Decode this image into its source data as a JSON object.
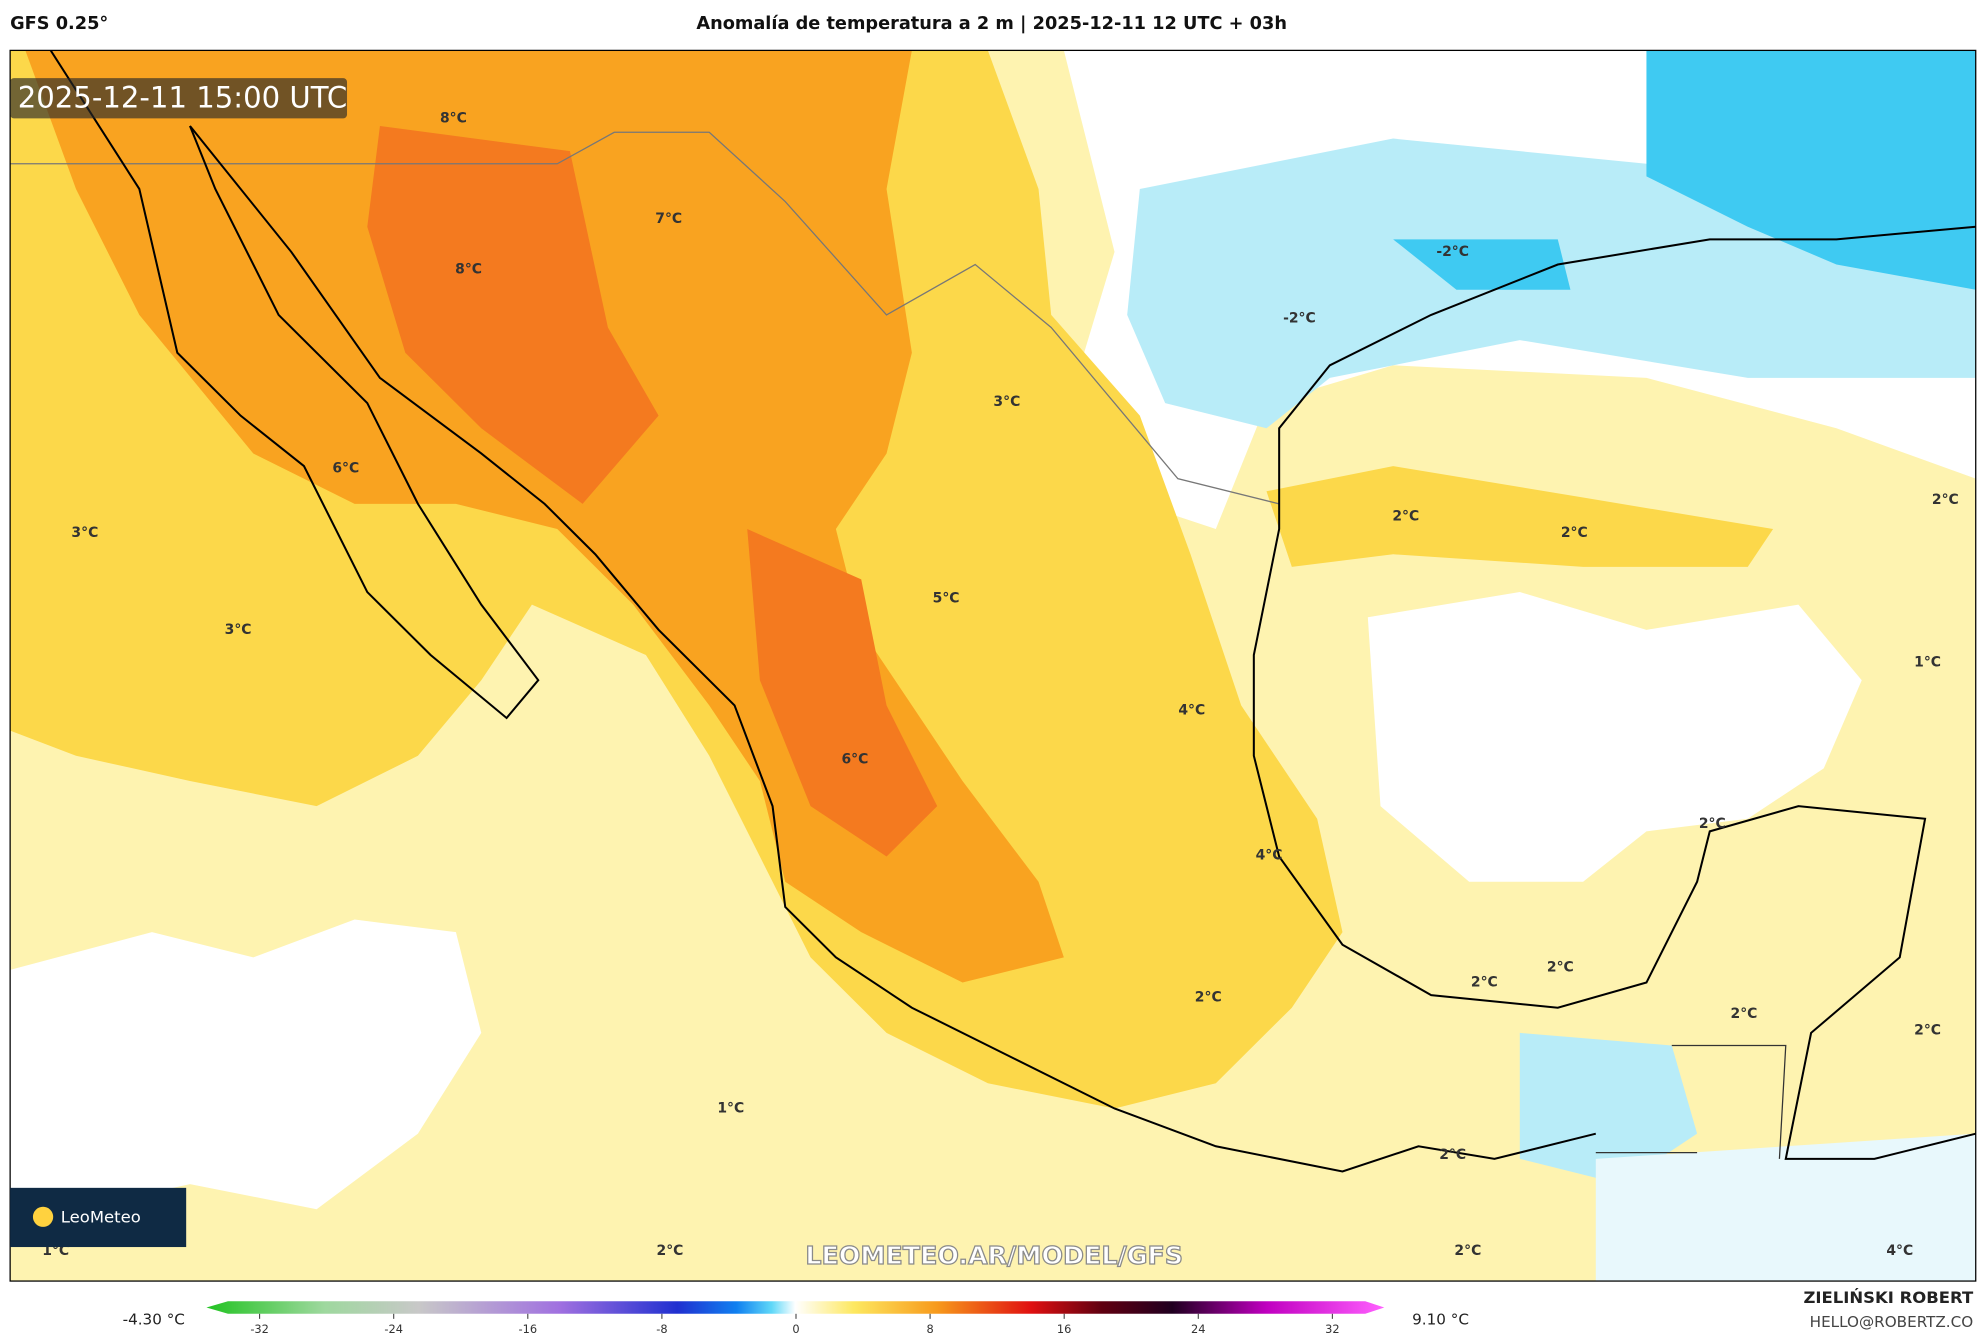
{
  "header": {
    "model": "GFS 0.25°",
    "title": "Anomalía de temperatura a 2 m | 2025-12-11 12 UTC + 03h"
  },
  "map": {
    "valid_time": "2025-12-11 15:00 UTC",
    "contour_labels": [
      "8°C",
      "7°C",
      "8°C",
      "-2°C",
      "-2°C",
      "3°C",
      "6°C",
      "3°C",
      "2°C",
      "2°C",
      "2°C",
      "5°C",
      "3°C",
      "1°C",
      "4°C",
      "6°C",
      "2°C",
      "4°C",
      "2°C",
      "2°C",
      "2°C",
      "2°C",
      "2°C",
      "1°C",
      "2°C",
      "1°C",
      "2°C",
      "2°C",
      "4°C"
    ],
    "watermark": "LEOMETEO.AR/MODEL/GFS",
    "logo": "LeoMeteo"
  },
  "colorbar": {
    "min_label": "-4.30 °C",
    "max_label": "9.10 °C",
    "ticks": [
      -32,
      -24,
      -16,
      -8,
      0,
      8,
      16,
      24,
      32
    ]
  },
  "footer": {
    "author": "ZIELIŃSKI ROBERT",
    "email": "HELLO@ROBERTZ.CO"
  }
}
